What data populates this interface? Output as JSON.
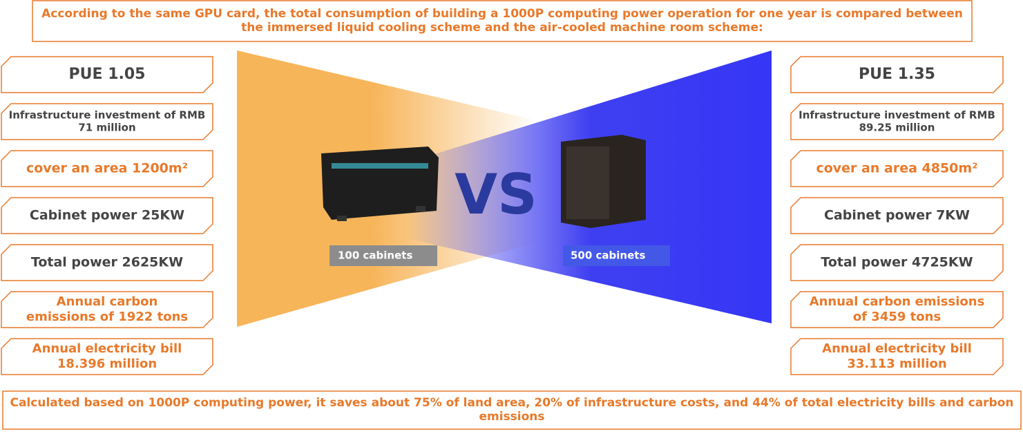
{
  "header": {
    "title_lines": [
      "According to the same GPU card, the total consumption of building a 1000P computing power operation for one year is compared between",
      "the immersed liquid cooling scheme and the air-cooled machine room scheme:"
    ]
  },
  "left": {
    "boxes": [
      {
        "lines": [
          "PUE  1.05"
        ]
      },
      {
        "lines": [
          "Infrastructure investment of RMB",
          "71 million"
        ]
      },
      {
        "lines": [
          "cover an area 1200m²"
        ]
      },
      {
        "lines": [
          "Cabinet power 25KW"
        ]
      },
      {
        "lines": [
          "Total power 2625KW"
        ]
      },
      {
        "lines": [
          "Annual carbon",
          "emissions of 1922 tons"
        ]
      },
      {
        "lines": [
          "Annual electricity bill",
          "18.396 million"
        ]
      }
    ],
    "label": "100 cabinets"
  },
  "right": {
    "boxes": [
      {
        "lines": [
          "PUE  1.35"
        ]
      },
      {
        "lines": [
          "Infrastructure investment of RMB",
          "89.25 million"
        ]
      },
      {
        "lines": [
          "cover an area 4850m²"
        ]
      },
      {
        "lines": [
          "Cabinet power 7KW"
        ]
      },
      {
        "lines": [
          "Total power 4725KW"
        ]
      },
      {
        "lines": [
          "Annual carbon emissions",
          "of 3459 tons"
        ]
      },
      {
        "lines": [
          "Annual electricity bill",
          "33.113 million"
        ]
      }
    ],
    "label": "500 cabinets"
  },
  "vs": "VS",
  "footer": {
    "lines": [
      "Calculated based on 1000P computing power, it saves about 75% of land area, 20% of infrastructure costs, and 44% of total electricity bills and carbon",
      "emissions"
    ]
  }
}
